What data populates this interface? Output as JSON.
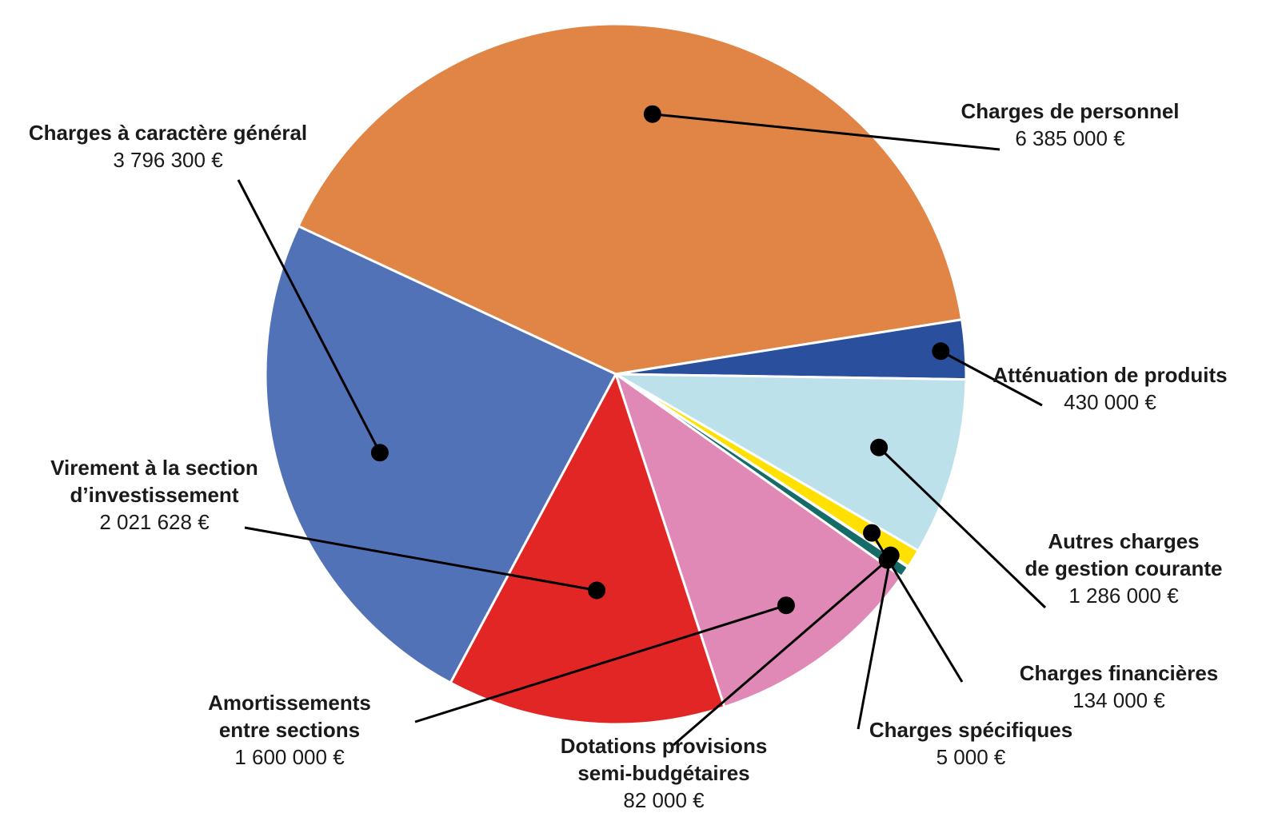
{
  "chart_data": {
    "type": "pie",
    "start_angle_deg": -65,
    "direction": "clockwise",
    "slices": [
      {
        "name": [
          "Charges de personnel"
        ],
        "value_label": "6 385 000 €",
        "value": 6385000,
        "color": "#E08545"
      },
      {
        "name": [
          "Atténuation de produits"
        ],
        "value_label": "430 000 €",
        "value": 430000,
        "color": "#2A4F9D"
      },
      {
        "name": [
          "Autres charges",
          "de gestion courante"
        ],
        "value_label": "1 286 000 €",
        "value": 1286000,
        "color": "#BCE1EA"
      },
      {
        "name": [
          "Charges financières"
        ],
        "value_label": "134 000 €",
        "value": 134000,
        "color": "#FFE000"
      },
      {
        "name": [
          "Charges spécifiques"
        ],
        "value_label": "5 000 €",
        "value": 5000,
        "color": "#0F8A8A"
      },
      {
        "name": [
          "Dotations provisions",
          "semi-budgétaires"
        ],
        "value_label": "82 000 €",
        "value": 82000,
        "color": "#156B67"
      },
      {
        "name": [
          "Amortissements",
          "entre sections"
        ],
        "value_label": "1 600 000 €",
        "value": 1600000,
        "color": "#E089B6"
      },
      {
        "name": [
          "Virement à la section",
          "d’investissement"
        ],
        "value_label": "2 021 628 €",
        "value": 2021628,
        "color": "#E22525"
      },
      {
        "name": [
          "Charges à caractère général"
        ],
        "value_label": "3 796 300 €",
        "value": 3796300,
        "color": "#5272B7"
      }
    ]
  }
}
